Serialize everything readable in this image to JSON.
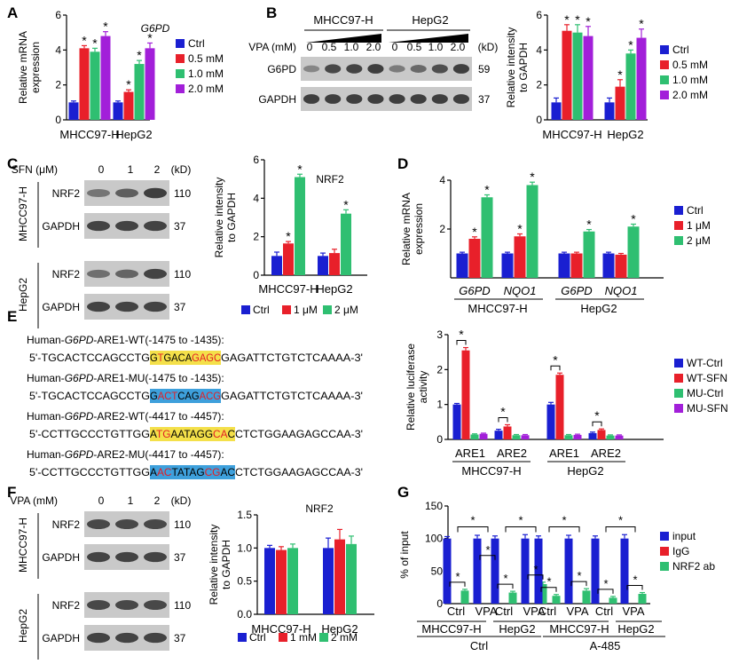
{
  "colors": {
    "blue": "#1a1fd1",
    "red": "#e8202a",
    "green": "#2fbf71",
    "purple": "#a21fd9",
    "hlYellow": "#f4e04a",
    "hlBlue": "#3ea0dc",
    "mut": "#e31e24",
    "blot": "#2a2a2a"
  },
  "panels": {
    "A": "A",
    "B": "B",
    "C": "C",
    "D": "D",
    "E": "E",
    "F": "F",
    "G": "G"
  },
  "star": "*",
  "units": {
    "kd": "(kD)"
  },
  "chart_data": [
    {
      "id": "A",
      "type": "bar",
      "title": "G6PD",
      "ylabel": "Relative mRNA expression",
      "ylim": [
        0,
        6
      ],
      "yticks": [
        "0",
        "2",
        "4",
        "6"
      ],
      "categories": [
        "MHCC97-H",
        "HepG2"
      ],
      "series": [
        {
          "name": "Ctrl",
          "values": [
            1,
            1
          ],
          "err": [
            0.08,
            0.08
          ]
        },
        {
          "name": "0.5 mM",
          "values": [
            4.1,
            1.6
          ],
          "err": [
            0.15,
            0.12
          ]
        },
        {
          "name": "1.0 mM",
          "values": [
            3.9,
            3.2
          ],
          "err": [
            0.2,
            0.2
          ]
        },
        {
          "name": "2.0 mM",
          "values": [
            4.8,
            4.1
          ],
          "err": [
            0.25,
            0.3
          ]
        }
      ],
      "stars": [
        [
          false,
          true,
          true,
          true
        ],
        [
          false,
          true,
          true,
          true
        ]
      ]
    },
    {
      "id": "B",
      "type": "bar",
      "ylabel": "Relative intensity to GAPDH",
      "ylim": [
        0,
        6
      ],
      "yticks": [
        "0",
        "2",
        "4",
        "6"
      ],
      "categories": [
        "MHCC97-H",
        "HepG2"
      ],
      "series": [
        {
          "name": "Ctrl",
          "values": [
            1,
            1
          ],
          "err": [
            0.25,
            0.25
          ]
        },
        {
          "name": "0.5 mM",
          "values": [
            5.1,
            1.9
          ],
          "err": [
            0.35,
            0.4
          ]
        },
        {
          "name": "1.0 mM",
          "values": [
            5.0,
            3.8
          ],
          "err": [
            0.45,
            0.2
          ]
        },
        {
          "name": "2.0 mM",
          "values": [
            4.8,
            4.7
          ],
          "err": [
            0.55,
            0.5
          ]
        }
      ],
      "stars": [
        [
          false,
          true,
          true,
          true
        ],
        [
          false,
          true,
          true,
          true
        ]
      ]
    },
    {
      "id": "C",
      "type": "bar",
      "title": "NRF2",
      "ylabel": "Relative intensity to GAPDH",
      "ylim": [
        0,
        6
      ],
      "yticks": [
        "0",
        "2",
        "4",
        "6"
      ],
      "categories": [
        "MHCC97-H",
        "HepG2"
      ],
      "series": [
        {
          "name": "Ctrl",
          "values": [
            1,
            1
          ],
          "err": [
            0.2,
            0.15
          ]
        },
        {
          "name": "1 μM",
          "values": [
            1.65,
            1.15
          ],
          "err": [
            0.1,
            0.2
          ]
        },
        {
          "name": "2 μM",
          "values": [
            5.1,
            3.2
          ],
          "err": [
            0.15,
            0.2
          ]
        }
      ],
      "stars": [
        [
          false,
          true,
          true
        ],
        [
          false,
          false,
          true
        ]
      ]
    },
    {
      "id": "D",
      "type": "bar",
      "ylabel": "Relative mRNA expression",
      "ylim": [
        0,
        4
      ],
      "yticks": [
        "2",
        "4"
      ],
      "categories": [
        "G6PD",
        "NQO1",
        "G6PD",
        "NQO1"
      ],
      "groups": [
        "MHCC97-H",
        "HepG2"
      ],
      "series": [
        {
          "name": "Ctrl",
          "values": [
            1.0,
            1.0,
            1.0,
            1.0
          ],
          "err": [
            0.05,
            0.05,
            0.05,
            0.05
          ]
        },
        {
          "name": "1 μM",
          "values": [
            1.6,
            1.7,
            1.0,
            0.95
          ],
          "err": [
            0.08,
            0.1,
            0.05,
            0.05
          ]
        },
        {
          "name": "2 μM",
          "values": [
            3.3,
            3.8,
            1.9,
            2.1
          ],
          "err": [
            0.1,
            0.12,
            0.08,
            0.1
          ]
        }
      ],
      "stars": [
        [
          false,
          true,
          true
        ],
        [
          false,
          true,
          true
        ],
        [
          false,
          false,
          true
        ],
        [
          false,
          false,
          true
        ]
      ]
    },
    {
      "id": "E",
      "type": "bar",
      "ylabel": "Relative luciferase activity",
      "ylim": [
        0,
        3
      ],
      "yticks": [
        "0",
        "1",
        "2",
        "3"
      ],
      "categories": [
        "ARE1",
        "ARE2",
        "ARE1",
        "ARE2"
      ],
      "groups": [
        "MHCC97-H",
        "HepG2"
      ],
      "series": [
        {
          "name": "WT-Ctrl",
          "values": [
            1.0,
            0.25,
            1.0,
            0.18
          ],
          "err": [
            0.03,
            0.04,
            0.06,
            0.03
          ]
        },
        {
          "name": "WT-SFN",
          "values": [
            2.55,
            0.37,
            1.85,
            0.27
          ],
          "err": [
            0.08,
            0.05,
            0.05,
            0.03
          ]
        },
        {
          "name": "MU-Ctrl",
          "values": [
            0.14,
            0.12,
            0.12,
            0.11
          ],
          "err": [
            0.02,
            0.02,
            0.02,
            0.02
          ]
        },
        {
          "name": "MU-SFN",
          "values": [
            0.16,
            0.12,
            0.13,
            0.11
          ],
          "err": [
            0.02,
            0.02,
            0.02,
            0.02
          ]
        }
      ],
      "brackets": [
        true,
        true,
        true,
        true
      ]
    },
    {
      "id": "F",
      "type": "bar",
      "title": "NRF2",
      "ylabel": "Relative intensity to GAPDH",
      "ylim": [
        0,
        1.5
      ],
      "yticks": [
        "0.0",
        "0.5",
        "1.0",
        "1.5"
      ],
      "categories": [
        "MHCC97-H",
        "HepG2"
      ],
      "series": [
        {
          "name": "Ctrl",
          "values": [
            1.0,
            1.0
          ],
          "err": [
            0.04,
            0.15
          ]
        },
        {
          "name": "1 mM",
          "values": [
            0.97,
            1.13
          ],
          "err": [
            0.05,
            0.15
          ]
        },
        {
          "name": "2 mM",
          "values": [
            1.0,
            1.06
          ],
          "err": [
            0.06,
            0.12
          ]
        }
      ]
    },
    {
      "id": "G",
      "type": "bar",
      "ylabel": "% of input",
      "ylim": [
        0,
        150
      ],
      "yticks": [
        "0",
        "50",
        "100",
        "150"
      ],
      "categories": [
        "Ctrl",
        "VPA",
        "Ctrl",
        "VPA",
        "Ctrl",
        "VPA",
        "Ctrl",
        "VPA"
      ],
      "groups": [
        "MHCC97-H",
        "HepG2",
        "MHCC97-H",
        "HepG2"
      ],
      "supergroups": [
        "Ctrl",
        "A-485"
      ],
      "series": [
        {
          "name": "input",
          "values": [
            100,
            100,
            100,
            100,
            100,
            100,
            100,
            100
          ],
          "err": [
            3,
            5,
            4,
            6,
            4,
            5,
            4,
            6
          ]
        },
        {
          "name": "IgG",
          "values": [
            0,
            0,
            0,
            0,
            0,
            0,
            0,
            0
          ],
          "err": [
            0,
            0,
            0,
            0,
            0,
            0,
            0,
            0
          ]
        },
        {
          "name": "NRF2 ab",
          "values": [
            20,
            59,
            17,
            30,
            12,
            20,
            9,
            15
          ],
          "err": [
            2,
            4,
            2,
            3,
            2,
            3,
            2,
            2
          ]
        }
      ]
    }
  ],
  "blots": {
    "B": {
      "cells": [
        "MHCC97-H",
        "HepG2"
      ],
      "treatLabel": "VPA (mM)",
      "doses": [
        "0",
        "0.5",
        "1.0",
        "2.0",
        "0",
        "0.5",
        "1.0",
        "2.0"
      ],
      "rows": [
        {
          "label": "G6PD",
          "kd": "59",
          "levels": [
            0.25,
            0.8,
            0.85,
            0.9,
            0.35,
            0.5,
            0.75,
            0.9
          ]
        },
        {
          "label": "GAPDH",
          "kd": "37",
          "levels": [
            0.9,
            0.9,
            0.9,
            0.9,
            0.9,
            0.9,
            0.9,
            0.9
          ]
        }
      ]
    },
    "C": {
      "treatLabel": "SFN (μM)",
      "doses": [
        "0",
        "1",
        "2"
      ],
      "blocks": [
        {
          "cell": "MHCC97-H",
          "rows": [
            {
              "label": "NRF2",
              "kd": "110",
              "levels": [
                0.4,
                0.6,
                0.9
              ]
            },
            {
              "label": "GAPDH",
              "kd": "37",
              "levels": [
                0.85,
                0.85,
                0.85
              ]
            }
          ]
        },
        {
          "cell": "HepG2",
          "rows": [
            {
              "label": "NRF2",
              "kd": "110",
              "levels": [
                0.45,
                0.55,
                0.85
              ]
            },
            {
              "label": "GAPDH",
              "kd": "37",
              "levels": [
                0.85,
                0.85,
                0.85
              ]
            }
          ]
        }
      ]
    },
    "F": {
      "treatLabel": "VPA (mM)",
      "doses": [
        "0",
        "1",
        "2"
      ],
      "blocks": [
        {
          "cell": "MHCC97-H",
          "rows": [
            {
              "label": "NRF2",
              "kd": "110",
              "levels": [
                0.8,
                0.8,
                0.8
              ]
            },
            {
              "label": "GAPDH",
              "kd": "37",
              "levels": [
                0.85,
                0.85,
                0.85
              ]
            }
          ]
        },
        {
          "cell": "HepG2",
          "rows": [
            {
              "label": "NRF2",
              "kd": "110",
              "levels": [
                0.8,
                0.8,
                0.8
              ]
            },
            {
              "label": "GAPDH",
              "kd": "37",
              "levels": [
                0.85,
                0.85,
                0.85
              ]
            }
          ]
        }
      ]
    }
  },
  "sequences": [
    {
      "label": {
        "pre": "Human-",
        "gene": "G6PD",
        "post": "-ARE1-WT(-1475 to -1435):"
      },
      "seq": [
        {
          "t": "5'-TGCACTCCAGCCTG"
        },
        {
          "t": "GTGACAGAGC",
          "hl": "yellow",
          "mut": [
            1,
            6,
            7,
            8,
            9
          ]
        },
        {
          "t": "GAGATTCTGTCTCAAAA-3'"
        }
      ]
    },
    {
      "label": {
        "pre": "Human-",
        "gene": "G6PD",
        "post": "-ARE1-MU(-1475 to -1435):"
      },
      "seq": [
        {
          "t": "5'-TGCACTCCAGCCTG"
        },
        {
          "t": "GACTCAGACG",
          "hl": "blue",
          "mut": [
            1,
            2,
            3,
            7,
            8,
            9
          ]
        },
        {
          "t": "GAGATTCTGTCTCAAAA-3'"
        }
      ]
    },
    {
      "label": {
        "pre": "Human-",
        "gene": "G6PD",
        "post": "-ARE2-WT(-4417 to -4457):"
      },
      "seq": [
        {
          "t": "5'-CCTTGCCCTGTTGG"
        },
        {
          "t": "ATGAATAGGCAC",
          "hl": "yellow",
          "mut": [
            1,
            2,
            9,
            10
          ]
        },
        {
          "t": "CTCTGGAAGAGCCAA-3'"
        }
      ]
    },
    {
      "label": {
        "pre": "Human-",
        "gene": "G6PD",
        "post": "-ARE2-MU(-4417 to -4457):"
      },
      "seq": [
        {
          "t": "5'-CCTTGCCCTGTTGG"
        },
        {
          "t": "AACTATAGCGAC",
          "hl": "blue",
          "mut": [
            1,
            2,
            8,
            9
          ]
        },
        {
          "t": "CTCTGGAAGAGCCAA-3'"
        }
      ]
    }
  ]
}
